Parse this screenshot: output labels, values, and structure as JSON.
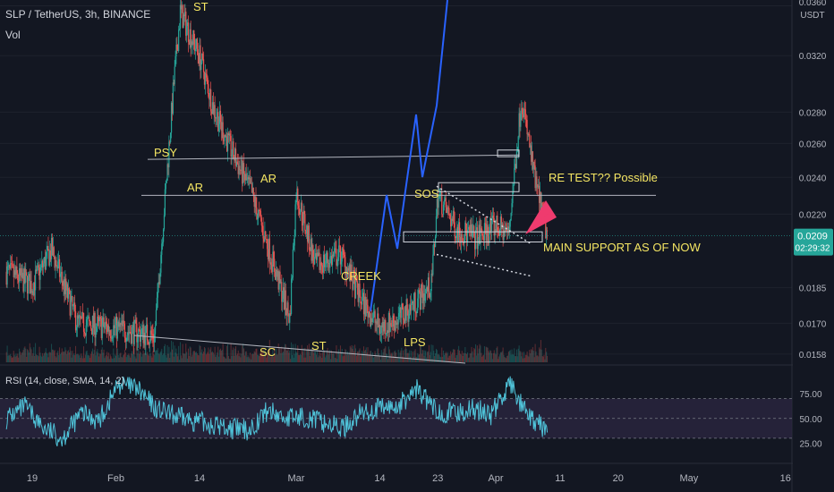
{
  "header": {
    "symbol_line": "SLP / TetherUS, 3h, BINANCE",
    "volume_label": "Vol"
  },
  "rsi": {
    "label": "RSI (14, close, SMA, 14, 2)",
    "levels": [
      75.0,
      50.0,
      25.0
    ],
    "tick_labels": [
      "75.00",
      "50.00",
      "25.00"
    ]
  },
  "price_axis": {
    "unit": "USDT",
    "ticks": [
      0.036,
      0.032,
      0.028,
      0.026,
      0.024,
      0.022,
      0.0185,
      0.017,
      0.0158
    ],
    "tick_labels": [
      "0.0360",
      "0.0320",
      "0.0280",
      "0.0260",
      "0.0240",
      "0.0220",
      "0.0185",
      "0.0170",
      "0.0158"
    ],
    "current_price": "0.0209",
    "countdown": "02:29:32"
  },
  "time_axis": {
    "labels": [
      "19",
      "Feb",
      "14",
      "Mar",
      "14",
      "23",
      "Apr",
      "11",
      "20",
      "May",
      "16"
    ]
  },
  "annotations": {
    "psy": "PSY",
    "st_top": "ST",
    "ar_left": "AR",
    "ar_right": "AR",
    "sc": "SC",
    "st_bottom": "ST",
    "creek": "CREEK",
    "lps": "LPS",
    "sos": "SOS",
    "retest": "RE TEST?? Possible",
    "main_support": "MAIN SUPPORT AS OF NOW"
  },
  "colors": {
    "background": "#131722",
    "up_candle": "#26a69a",
    "down_candle": "#ef5350",
    "rsi_line": "#4fc3d9",
    "rsi_band": "#2a2540",
    "projection": "#2962ff",
    "arrow": "#ef3b6e",
    "annotation_text": "#f5e663",
    "price_badge": "#26a69a"
  },
  "chart_data": {
    "type": "candlestick",
    "title": "SLP / TetherUS, 3h, BINANCE",
    "ylabel": "USDT",
    "ylim": [
      0.0155,
      0.0365
    ],
    "y_scale": "log",
    "x_ticks": [
      "19",
      "Feb",
      "14",
      "Mar",
      "14",
      "23",
      "Apr",
      "11",
      "20",
      "May",
      "16"
    ],
    "approx_close_path": [
      {
        "t": "Jan 15",
        "price": 0.0192
      },
      {
        "t": "Jan 19",
        "price": 0.0186
      },
      {
        "t": "Jan 22",
        "price": 0.0202
      },
      {
        "t": "Jan 26",
        "price": 0.017
      },
      {
        "t": "Feb 1",
        "price": 0.0168
      },
      {
        "t": "Feb 7",
        "price": 0.0165
      },
      {
        "t": "Feb 10",
        "price": 0.03
      },
      {
        "t": "Feb 11",
        "price": 0.0355
      },
      {
        "t": "Feb 14",
        "price": 0.032
      },
      {
        "t": "Feb 16",
        "price": 0.0285
      },
      {
        "t": "Feb 19",
        "price": 0.0255
      },
      {
        "t": "Feb 22",
        "price": 0.0232
      },
      {
        "t": "Feb 25",
        "price": 0.02
      },
      {
        "t": "Feb 28",
        "price": 0.0172
      },
      {
        "t": "Mar 1",
        "price": 0.0232
      },
      {
        "t": "Mar 4",
        "price": 0.0195
      },
      {
        "t": "Mar 8",
        "price": 0.02
      },
      {
        "t": "Mar 11",
        "price": 0.018
      },
      {
        "t": "Mar 14",
        "price": 0.0168
      },
      {
        "t": "Mar 17",
        "price": 0.0172
      },
      {
        "t": "Mar 20",
        "price": 0.018
      },
      {
        "t": "Mar 22",
        "price": 0.0186
      },
      {
        "t": "Mar 23",
        "price": 0.023
      },
      {
        "t": "Mar 26",
        "price": 0.0212
      },
      {
        "t": "Mar 29",
        "price": 0.0208
      },
      {
        "t": "Apr 1",
        "price": 0.0214
      },
      {
        "t": "Apr 3",
        "price": 0.021
      },
      {
        "t": "Apr 5",
        "price": 0.029
      },
      {
        "t": "Apr 7",
        "price": 0.024
      },
      {
        "t": "Apr 9",
        "price": 0.0209
      }
    ],
    "rsi_approx": [
      50,
      62,
      40,
      30,
      55,
      48,
      85,
      80,
      60,
      52,
      48,
      44,
      40,
      38,
      58,
      50,
      52,
      46,
      40,
      55,
      60,
      62,
      80,
      58,
      55,
      60,
      54,
      85,
      50,
      38
    ],
    "horizontal_levels": [
      {
        "name": "PSY",
        "price": 0.0252
      },
      {
        "name": "AR",
        "price": 0.023
      },
      {
        "name": "MAIN SUPPORT AS OF NOW",
        "price": 0.0208
      }
    ],
    "current_price": 0.0209
  }
}
